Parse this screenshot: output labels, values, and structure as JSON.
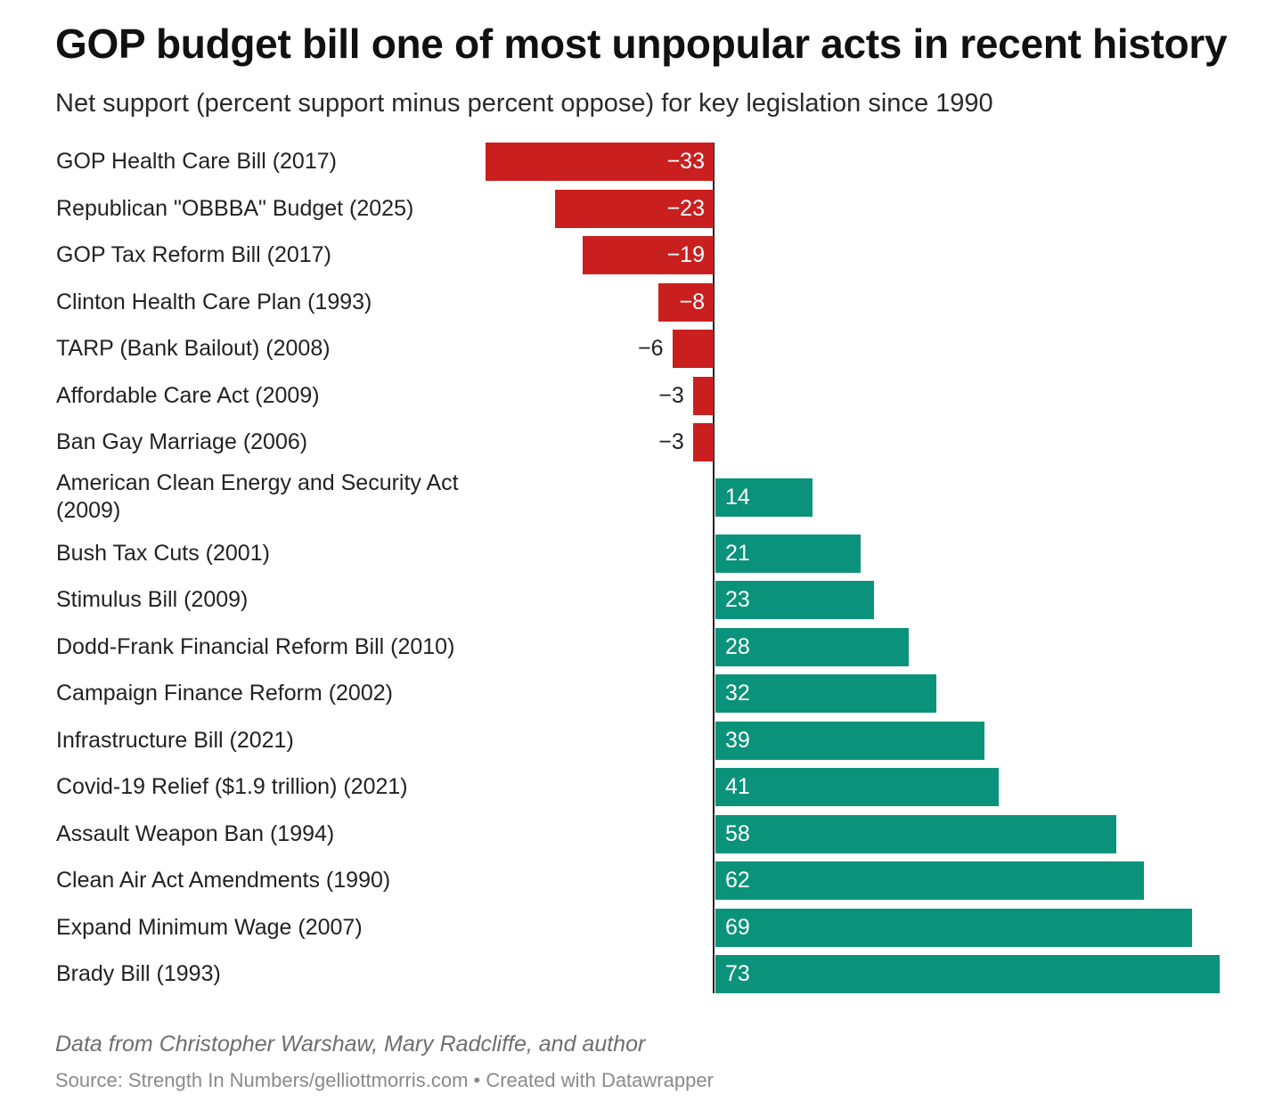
{
  "chart_data": {
    "type": "bar",
    "orientation": "horizontal",
    "title": "GOP budget bill one of most unpopular acts in recent history",
    "subtitle": "Net support (percent support minus percent oppose) for key legislation since 1990",
    "categories": [
      "GOP Health Care Bill (2017)",
      "Republican \"OBBBA\" Budget (2025)",
      "GOP Tax Reform Bill (2017)",
      "Clinton Health Care Plan (1993)",
      "TARP (Bank Bailout) (2008)",
      "Affordable Care Act (2009)",
      "Ban Gay Marriage (2006)",
      "American Clean Energy and Security Act (2009)",
      "Bush Tax Cuts (2001)",
      "Stimulus Bill (2009)",
      "Dodd-Frank Financial Reform Bill (2010)",
      "Campaign Finance Reform (2002)",
      "Infrastructure Bill (2021)",
      "Covid-19 Relief ($1.9 trillion) (2021)",
      "Assault Weapon Ban (1994)",
      "Clean Air Act Amendments (1990)",
      "Expand Minimum Wage (2007)",
      "Brady Bill (1993)"
    ],
    "values": [
      -33,
      -23,
      -19,
      -8,
      -6,
      -3,
      -3,
      14,
      21,
      23,
      28,
      32,
      39,
      41,
      58,
      62,
      69,
      73
    ],
    "value_labels": [
      "−33",
      "−23",
      "−19",
      "−8",
      "−6",
      "−3",
      "−3",
      "14",
      "21",
      "23",
      "28",
      "32",
      "39",
      "41",
      "58",
      "62",
      "69",
      "73"
    ],
    "xlim": [
      -33,
      73
    ],
    "colors": {
      "negative": "#c9201f",
      "positive": "#0a937a"
    },
    "grid": false,
    "legend": "none"
  },
  "footer": {
    "note": "Data from Christopher Warshaw, Mary Radcliffe, and author",
    "source": "Source: Strength In Numbers/gelliottmorris.com • Created with Datawrapper"
  }
}
